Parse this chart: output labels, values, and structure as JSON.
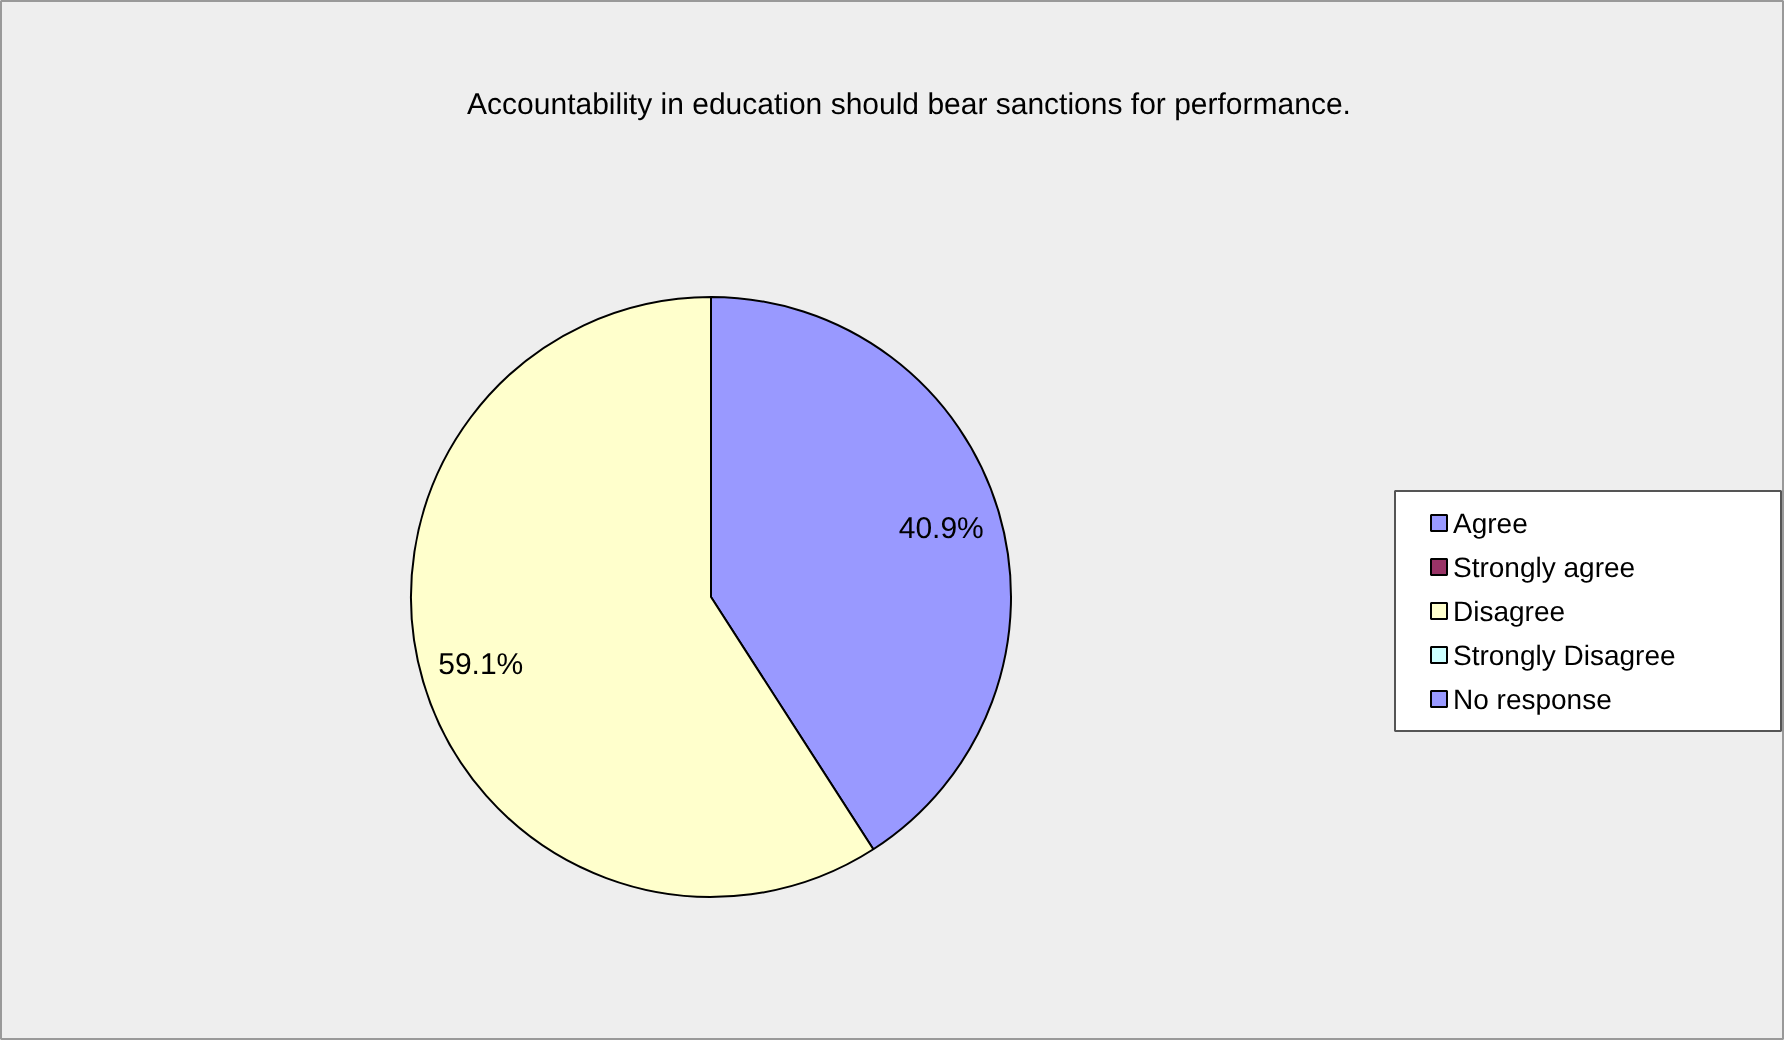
{
  "chart_data": {
    "type": "pie",
    "title": "Accountability in education should bear sanctions for performance.",
    "categories": [
      "Agree",
      "Strongly agree",
      "Disagree",
      "Strongly Disagree",
      "No response"
    ],
    "values": [
      40.9,
      0,
      59.1,
      0,
      0
    ],
    "colors": [
      "#9999ff",
      "#993366",
      "#ffffcc",
      "#ccffff",
      "#9999ff"
    ],
    "value_labels": [
      "40.9%",
      null,
      "59.1%",
      null,
      null
    ],
    "legend": "right"
  }
}
